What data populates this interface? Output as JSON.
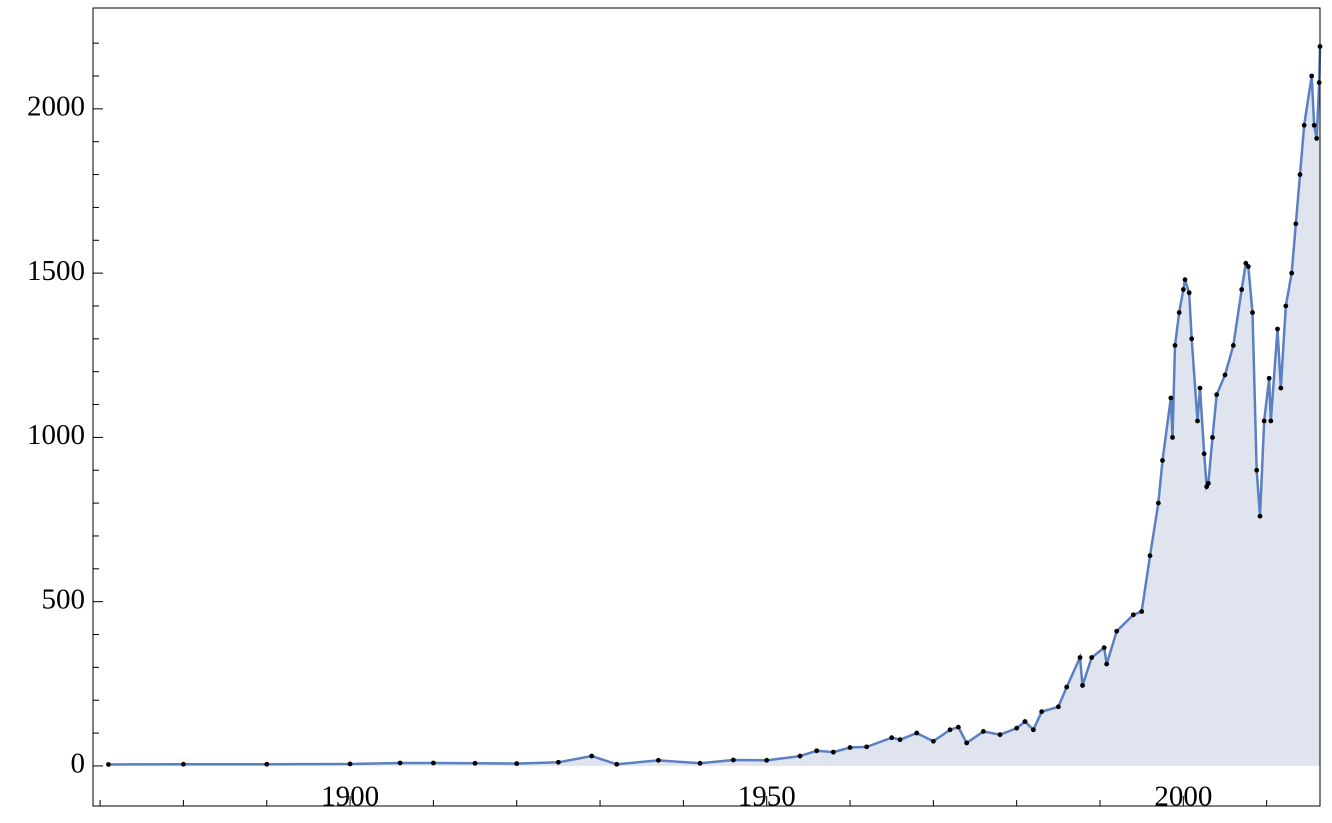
{
  "chart_data": {
    "type": "area",
    "x": [
      1871,
      1880,
      1890,
      1900,
      1906,
      1910,
      1915,
      1920,
      1925,
      1929,
      1932,
      1937,
      1942,
      1946,
      1950,
      1954,
      1956,
      1958,
      1960,
      1962,
      1965,
      1966,
      1968,
      1970,
      1972,
      1973,
      1974,
      1976,
      1978,
      1980,
      1981,
      1982,
      1983,
      1985,
      1986,
      1987.6,
      1987.9,
      1989,
      1990.5,
      1990.8,
      1992,
      1994,
      1995,
      1996,
      1997,
      1997.5,
      1998.5,
      1998.7,
      1999,
      1999.5,
      2000,
      2000.2,
      2000.7,
      2001,
      2001.7,
      2002,
      2002.5,
      2002.8,
      2003,
      2003.5,
      2004,
      2005,
      2006,
      2007,
      2007.5,
      2007.8,
      2008.3,
      2008.8,
      2009.2,
      2009.7,
      2010.3,
      2010.5,
      2011.3,
      2011.7,
      2012.3,
      2013,
      2013.5,
      2014,
      2014.5,
      2015.4,
      2015.7,
      2016,
      2016.3,
      2016.4
    ],
    "values": [
      4.4,
      5,
      5,
      6,
      9,
      9,
      8,
      7,
      11,
      30,
      5,
      17,
      8,
      18,
      17,
      30,
      46,
      42,
      56,
      58,
      86,
      80,
      100,
      75,
      110,
      118,
      70,
      105,
      95,
      115,
      135,
      110,
      165,
      180,
      240,
      330,
      245,
      330,
      360,
      310,
      410,
      460,
      470,
      640,
      800,
      930,
      1120,
      1000,
      1280,
      1380,
      1450,
      1480,
      1440,
      1300,
      1050,
      1150,
      950,
      850,
      860,
      1000,
      1130,
      1190,
      1280,
      1450,
      1530,
      1520,
      1380,
      900,
      760,
      1050,
      1180,
      1050,
      1330,
      1150,
      1400,
      1500,
      1650,
      1800,
      1950,
      2100,
      1950,
      1910,
      2080,
      2190
    ],
    "line_color": "#5b80c1",
    "fill_color": "#dfe4ef",
    "point_color": "#000000",
    "xlim": [
      1869.15,
      2016.4
    ],
    "ylim": [
      -122,
      2307
    ],
    "xticks": [
      1900,
      1950,
      2000
    ],
    "xminorticks": [
      1870,
      1880,
      1890,
      1910,
      1920,
      1930,
      1940,
      1960,
      1970,
      1980,
      1990,
      2010
    ],
    "yticks": [
      0,
      500,
      1000,
      1500,
      2000
    ],
    "yminorticks": [
      100,
      200,
      300,
      400,
      600,
      700,
      800,
      900,
      1100,
      1200,
      1300,
      1400,
      1600,
      1700,
      1800,
      1900,
      2100,
      2200
    ]
  }
}
